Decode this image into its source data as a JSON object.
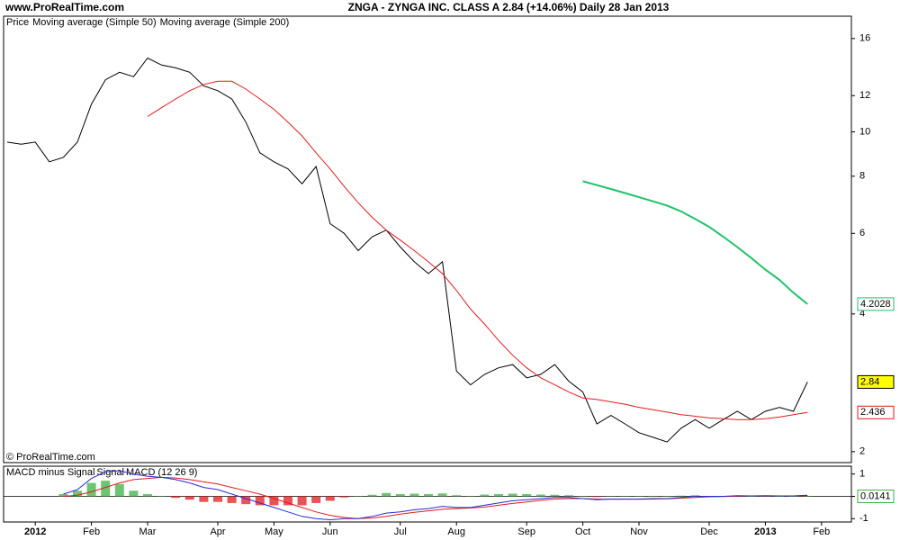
{
  "site": "www.ProRealTime.com",
  "footer": "© ProRealTime.com",
  "chart_data": [
    {
      "type": "line",
      "title": "ZNGA - ZYNGA INC. CLASS A   2.84 (+14.06%)   Daily  28 Jan 2013",
      "log_scale": true,
      "categories": [
        null,
        null,
        "2012",
        null,
        null,
        null,
        "Feb",
        null,
        null,
        null,
        "Mar",
        null,
        null,
        null,
        null,
        "Apr",
        null,
        null,
        null,
        "May",
        null,
        null,
        null,
        "Jun",
        null,
        null,
        null,
        null,
        "Jul",
        null,
        null,
        null,
        "Aug",
        null,
        null,
        null,
        null,
        "Sep",
        null,
        null,
        null,
        "Oct",
        null,
        null,
        null,
        "Nov",
        null,
        null,
        null,
        null,
        "Dec",
        null,
        null,
        null,
        "2013",
        null,
        null,
        null,
        "Feb"
      ],
      "series": [
        {
          "name": "Price",
          "color": "#000000",
          "values": [
            9.5,
            9.4,
            9.5,
            8.6,
            8.8,
            9.5,
            11.5,
            13.0,
            13.5,
            13.2,
            14.5,
            14.0,
            13.8,
            13.5,
            12.6,
            12.3,
            11.8,
            10.5,
            9.0,
            8.6,
            8.3,
            7.7,
            8.4,
            6.3,
            6.0,
            5.5,
            5.9,
            6.1,
            5.6,
            5.2,
            4.9,
            5.2,
            3.0,
            2.8,
            2.95,
            3.05,
            3.1,
            2.9,
            2.95,
            3.1,
            2.85,
            2.7,
            2.3,
            2.4,
            2.3,
            2.2,
            2.15,
            2.1,
            2.25,
            2.35,
            2.25,
            2.35,
            2.45,
            2.35,
            2.45,
            2.5,
            2.45,
            2.84,
            null
          ]
        },
        {
          "name": "Moving average (Simple 50)",
          "color": "#e31a1c",
          "values": [
            null,
            null,
            null,
            null,
            null,
            null,
            null,
            null,
            null,
            null,
            10.8,
            11.3,
            11.8,
            12.3,
            12.7,
            12.9,
            12.9,
            12.4,
            11.8,
            11.2,
            10.5,
            9.8,
            9.0,
            8.3,
            7.6,
            7.0,
            6.5,
            6.1,
            5.8,
            5.5,
            5.2,
            4.9,
            4.5,
            4.1,
            3.8,
            3.5,
            3.25,
            3.05,
            2.9,
            2.8,
            2.7,
            2.62,
            2.6,
            2.57,
            2.54,
            2.5,
            2.47,
            2.44,
            2.41,
            2.39,
            2.37,
            2.36,
            2.35,
            2.35,
            2.36,
            2.38,
            2.41,
            2.436,
            null
          ]
        },
        {
          "name": "Moving average (Simple 200)",
          "color": "#1fc26a",
          "values": [
            null,
            null,
            null,
            null,
            null,
            null,
            null,
            null,
            null,
            null,
            null,
            null,
            null,
            null,
            null,
            null,
            null,
            null,
            null,
            null,
            null,
            null,
            null,
            null,
            null,
            null,
            null,
            null,
            null,
            null,
            null,
            null,
            null,
            null,
            null,
            null,
            null,
            null,
            null,
            null,
            null,
            7.8,
            7.65,
            7.5,
            7.35,
            7.2,
            7.05,
            6.9,
            6.7,
            6.45,
            6.2,
            5.9,
            5.6,
            5.3,
            5.0,
            4.75,
            4.45,
            4.2028,
            null
          ]
        }
      ],
      "ylim": [
        1.91,
        17.9
      ],
      "yticks": [
        2,
        4,
        6,
        8,
        10,
        12,
        16
      ]
    },
    {
      "type": "macd",
      "series": [
        {
          "name": "MACD minus Signal",
          "color": "#3cb043",
          "negative_color": "#e31a1c",
          "bars": true,
          "values": [
            null,
            null,
            null,
            null,
            0.1,
            0.25,
            0.6,
            0.7,
            0.55,
            0.25,
            0.1,
            0,
            -0.07,
            -0.15,
            -0.25,
            -0.25,
            -0.3,
            -0.35,
            -0.4,
            -0.4,
            -0.4,
            -0.4,
            -0.3,
            -0.2,
            -0.05,
            0,
            0.07,
            0.15,
            0.1,
            0.12,
            0.1,
            0.13,
            0.05,
            0.02,
            0.08,
            0.1,
            0.12,
            0.1,
            0.08,
            0.07,
            0.05,
            0,
            -0.03,
            0.01,
            0.01,
            0.01,
            0.02,
            0.01,
            0.03,
            0.05,
            0.02,
            0.01,
            0.02,
            0,
            0.01,
            0,
            0,
            0.0141,
            null
          ]
        },
        {
          "name": "Signal",
          "color": "#e31a1c",
          "values": [
            null,
            null,
            null,
            null,
            0,
            0.05,
            0.2,
            0.4,
            0.6,
            0.75,
            0.8,
            0.85,
            0.82,
            0.75,
            0.65,
            0.55,
            0.4,
            0.25,
            0.1,
            -0.1,
            -0.3,
            -0.5,
            -0.7,
            -0.85,
            -0.95,
            -1.0,
            -0.97,
            -0.9,
            -0.8,
            -0.72,
            -0.65,
            -0.58,
            -0.55,
            -0.52,
            -0.48,
            -0.4,
            -0.32,
            -0.25,
            -0.18,
            -0.12,
            -0.1,
            -0.1,
            -0.12,
            -0.13,
            -0.13,
            -0.13,
            -0.12,
            -0.11,
            -0.08,
            -0.05,
            -0.02,
            -0.01,
            0.01,
            0.02,
            0.02,
            0.02,
            0.02,
            0.036,
            null
          ]
        },
        {
          "name": "MACD (12 26 9)",
          "color": "#2b2bd6",
          "values": [
            null,
            null,
            null,
            null,
            0.1,
            0.3,
            0.8,
            1.1,
            1.15,
            1.0,
            0.9,
            0.85,
            0.75,
            0.6,
            0.4,
            0.3,
            0.1,
            -0.1,
            -0.3,
            -0.5,
            -0.7,
            -0.9,
            -1.0,
            -1.05,
            -1.0,
            -1.0,
            -0.9,
            -0.75,
            -0.7,
            -0.6,
            -0.55,
            -0.45,
            -0.5,
            -0.5,
            -0.4,
            -0.3,
            -0.2,
            -0.15,
            -0.1,
            -0.05,
            -0.05,
            -0.1,
            -0.15,
            -0.12,
            -0.12,
            -0.12,
            -0.1,
            -0.1,
            -0.05,
            0,
            0,
            0,
            0.03,
            0.02,
            0.03,
            0.02,
            0.02,
            0.05,
            null
          ]
        }
      ],
      "ylim": [
        -1.15,
        1.35
      ],
      "yticks": [
        1,
        0,
        -1
      ]
    }
  ]
}
